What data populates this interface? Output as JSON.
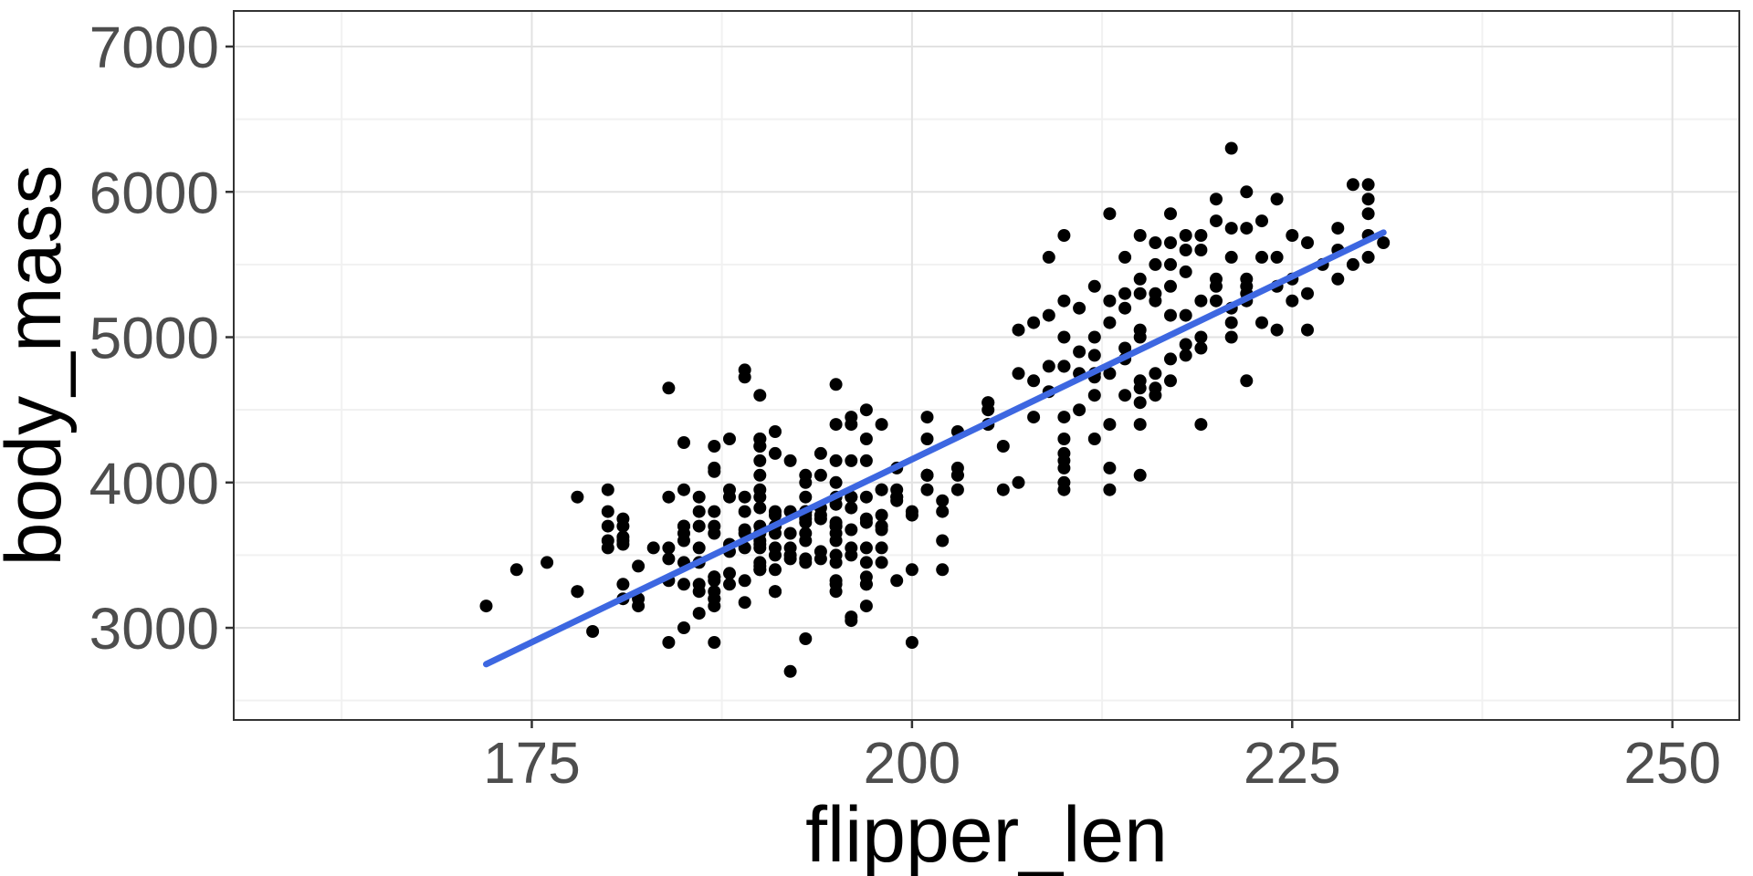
{
  "chart_data": {
    "type": "scatter",
    "title": "",
    "xlabel": "flipper_len",
    "ylabel": "body_mass",
    "xlim": [
      155.4,
      254.4
    ],
    "ylim": [
      2366,
      7245
    ],
    "x_ticks": [
      175,
      200,
      225,
      250
    ],
    "x_tick_labels": [
      "175",
      "200",
      "225",
      "250"
    ],
    "y_ticks": [
      3000,
      4000,
      5000,
      6000,
      7000
    ],
    "y_tick_labels": [
      "3000",
      "4000",
      "5000",
      "6000",
      "7000"
    ],
    "x_minor_ticks": [
      162.5,
      187.5,
      212.5,
      237.5
    ],
    "y_minor_ticks": [
      2500,
      3500,
      4500,
      5500,
      6500
    ],
    "grid": "on",
    "legend": "none",
    "trend_line": {
      "type": "linear",
      "x1": 172,
      "y1": 2750,
      "x2": 231,
      "y2": 5720
    },
    "colors": {
      "point": "#000000",
      "trend_line": "#3d67e1",
      "grid_major": "#e2e2e2",
      "grid_minor": "#f1f1f1",
      "panel_border": "#333333",
      "tick": "#333333",
      "tick_label": "#4d4d4d",
      "axis_title": "#000000",
      "background": "#ffffff",
      "panel_background": "#ffffff"
    },
    "points": [
      [
        181,
        3750
      ],
      [
        186,
        3800
      ],
      [
        195,
        3250
      ],
      [
        193,
        3450
      ],
      [
        190,
        3650
      ],
      [
        181,
        3625
      ],
      [
        195,
        4675
      ],
      [
        193,
        3475
      ],
      [
        190,
        4250
      ],
      [
        186,
        3300
      ],
      [
        180,
        3700
      ],
      [
        182,
        3200
      ],
      [
        191,
        3800
      ],
      [
        198,
        4400
      ],
      [
        185,
        3700
      ],
      [
        195,
        3450
      ],
      [
        197,
        4500
      ],
      [
        184,
        3325
      ],
      [
        194,
        4200
      ],
      [
        174,
        3400
      ],
      [
        180,
        3600
      ],
      [
        189,
        3800
      ],
      [
        185,
        3950
      ],
      [
        180,
        3800
      ],
      [
        187,
        3800
      ],
      [
        183,
        3550
      ],
      [
        187,
        3200
      ],
      [
        172,
        3150
      ],
      [
        180,
        3950
      ],
      [
        178,
        3250
      ],
      [
        178,
        3900
      ],
      [
        188,
        3300
      ],
      [
        184,
        3900
      ],
      [
        195,
        3325
      ],
      [
        196,
        4150
      ],
      [
        190,
        3950
      ],
      [
        180,
        3550
      ],
      [
        181,
        3300
      ],
      [
        184,
        4650
      ],
      [
        182,
        3150
      ],
      [
        195,
        3900
      ],
      [
        186,
        3100
      ],
      [
        196,
        4400
      ],
      [
        185,
        3000
      ],
      [
        190,
        4600
      ],
      [
        182,
        3425
      ],
      [
        179,
        2975
      ],
      [
        190,
        4150
      ],
      [
        191,
        3500
      ],
      [
        186,
        3450
      ],
      [
        188,
        4300
      ],
      [
        190,
        4050
      ],
      [
        200,
        2900
      ],
      [
        187,
        3700
      ],
      [
        191,
        3775
      ],
      [
        186,
        3700
      ],
      [
        193,
        4050
      ],
      [
        181,
        3575
      ],
      [
        194,
        4050
      ],
      [
        185,
        3300
      ],
      [
        195,
        3700
      ],
      [
        185,
        3450
      ],
      [
        192,
        4150
      ],
      [
        184,
        3550
      ],
      [
        192,
        3800
      ],
      [
        195,
        3500
      ],
      [
        188,
        3950
      ],
      [
        190,
        3600
      ],
      [
        198,
        3550
      ],
      [
        190,
        4300
      ],
      [
        190,
        3400
      ],
      [
        196,
        4450
      ],
      [
        197,
        3300
      ],
      [
        190,
        4300
      ],
      [
        195,
        3700
      ],
      [
        191,
        4350
      ],
      [
        184,
        2900
      ],
      [
        187,
        4100
      ],
      [
        195,
        3725
      ],
      [
        189,
        4725
      ],
      [
        196,
        3075
      ],
      [
        187,
        4250
      ],
      [
        193,
        2925
      ],
      [
        191,
        3550
      ],
      [
        194,
        3750
      ],
      [
        190,
        3900
      ],
      [
        189,
        3175
      ],
      [
        189,
        4775
      ],
      [
        190,
        3825
      ],
      [
        202,
        3875
      ],
      [
        203,
        4050
      ],
      [
        205,
        4400
      ],
      [
        210,
        4000
      ],
      [
        185,
        4275
      ],
      [
        186,
        3900
      ],
      [
        187,
        4075
      ],
      [
        193,
        3750
      ],
      [
        191,
        3700
      ],
      [
        194,
        3825
      ],
      [
        185,
        3650
      ],
      [
        184,
        3475
      ],
      [
        201,
        4050
      ],
      [
        190,
        3425
      ],
      [
        197,
        3900
      ],
      [
        191,
        3250
      ],
      [
        196,
        3825
      ],
      [
        188,
        3900
      ],
      [
        199,
        3900
      ],
      [
        189,
        3550
      ],
      [
        189,
        3675
      ],
      [
        187,
        3325
      ],
      [
        198,
        3700
      ],
      [
        176,
        3450
      ],
      [
        202,
        3600
      ],
      [
        186,
        3550
      ],
      [
        199,
        3875
      ],
      [
        191,
        3700
      ],
      [
        195,
        4000
      ],
      [
        191,
        3650
      ],
      [
        190,
        4250
      ],
      [
        200,
        3775
      ],
      [
        197,
        3350
      ],
      [
        193,
        3725
      ],
      [
        192,
        3650
      ],
      [
        193,
        4000
      ],
      [
        194,
        3475
      ],
      [
        198,
        3450
      ],
      [
        197,
        4300
      ],
      [
        185,
        3600
      ],
      [
        193,
        3800
      ],
      [
        199,
        3950
      ],
      [
        190,
        3550
      ],
      [
        181,
        3200
      ],
      [
        197,
        3150
      ],
      [
        198,
        3950
      ],
      [
        191,
        3250
      ],
      [
        193,
        3900
      ],
      [
        197,
        3550
      ],
      [
        191,
        4200
      ],
      [
        196,
        3900
      ],
      [
        188,
        3375
      ],
      [
        199,
        4100
      ],
      [
        189,
        3900
      ],
      [
        189,
        3325
      ],
      [
        187,
        3150
      ],
      [
        196,
        3050
      ],
      [
        190,
        3700
      ],
      [
        188,
        3575
      ],
      [
        192,
        3475
      ],
      [
        186,
        3250
      ],
      [
        192,
        3550
      ],
      [
        192,
        3500
      ],
      [
        196,
        3900
      ],
      [
        193,
        3650
      ],
      [
        188,
        3525
      ],
      [
        197,
        3725
      ],
      [
        198,
        3950
      ],
      [
        178,
        3250
      ],
      [
        197,
        3750
      ],
      [
        195,
        4150
      ],
      [
        198,
        3700
      ],
      [
        193,
        3800
      ],
      [
        194,
        3775
      ],
      [
        185,
        3700
      ],
      [
        201,
        4050
      ],
      [
        190,
        3575
      ],
      [
        201,
        4050
      ],
      [
        197,
        3300
      ],
      [
        181,
        3700
      ],
      [
        190,
        3450
      ],
      [
        195,
        4400
      ],
      [
        181,
        3600
      ],
      [
        191,
        3400
      ],
      [
        187,
        2900
      ],
      [
        193,
        3800
      ],
      [
        195,
        3300
      ],
      [
        197,
        4150
      ],
      [
        200,
        3400
      ],
      [
        200,
        3800
      ],
      [
        191,
        3700
      ],
      [
        205,
        4550
      ],
      [
        187,
        3200
      ],
      [
        201,
        4300
      ],
      [
        187,
        3350
      ],
      [
        203,
        4100
      ],
      [
        195,
        3600
      ],
      [
        199,
        3900
      ],
      [
        195,
        3850
      ],
      [
        210,
        4800
      ],
      [
        192,
        2700
      ],
      [
        205,
        4500
      ],
      [
        210,
        3950
      ],
      [
        187,
        3650
      ],
      [
        196,
        3550
      ],
      [
        196,
        3500
      ],
      [
        196,
        3675
      ],
      [
        201,
        4450
      ],
      [
        190,
        3400
      ],
      [
        212,
        4300
      ],
      [
        187,
        3250
      ],
      [
        198,
        3675
      ],
      [
        199,
        3325
      ],
      [
        201,
        3950
      ],
      [
        193,
        3600
      ],
      [
        203,
        4050
      ],
      [
        187,
        3350
      ],
      [
        197,
        3450
      ],
      [
        191,
        3250
      ],
      [
        203,
        3950
      ],
      [
        202,
        3800
      ],
      [
        194,
        3525
      ],
      [
        206,
        3950
      ],
      [
        189,
        3650
      ],
      [
        195,
        3650
      ],
      [
        207,
        4000
      ],
      [
        202,
        3400
      ],
      [
        193,
        3775
      ],
      [
        210,
        4100
      ],
      [
        198,
        3775
      ],
      [
        211,
        4500
      ],
      [
        230,
        5700
      ],
      [
        210,
        4450
      ],
      [
        218,
        5700
      ],
      [
        215,
        4550
      ],
      [
        210,
        4800
      ],
      [
        211,
        5200
      ],
      [
        219,
        4400
      ],
      [
        209,
        5150
      ],
      [
        215,
        4650
      ],
      [
        214,
        5550
      ],
      [
        216,
        4650
      ],
      [
        213,
        5850
      ],
      [
        210,
        4200
      ],
      [
        217,
        5850
      ],
      [
        210,
        4150
      ],
      [
        221,
        6300
      ],
      [
        209,
        4800
      ],
      [
        222,
        5350
      ],
      [
        218,
        5600
      ],
      [
        215,
        5000
      ],
      [
        213,
        4400
      ],
      [
        215,
        5050
      ],
      [
        215,
        5300
      ],
      [
        215,
        4400
      ],
      [
        216,
        5650
      ],
      [
        215,
        4700
      ],
      [
        210,
        5700
      ],
      [
        220,
        5800
      ],
      [
        222,
        4700
      ],
      [
        209,
        5550
      ],
      [
        207,
        4750
      ],
      [
        230,
        5550
      ],
      [
        220,
        5950
      ],
      [
        222,
        5250
      ],
      [
        213,
        5250
      ],
      [
        229,
        6050
      ],
      [
        217,
        5150
      ],
      [
        214,
        4925
      ],
      [
        221,
        5550
      ],
      [
        216,
        4750
      ],
      [
        223,
        5550
      ],
      [
        221,
        5000
      ],
      [
        221,
        5100
      ],
      [
        217,
        5650
      ],
      [
        216,
        4600
      ],
      [
        230,
        5950
      ],
      [
        209,
        4625
      ],
      [
        220,
        5350
      ],
      [
        215,
        5700
      ],
      [
        223,
        5800
      ],
      [
        212,
        4725
      ],
      [
        221,
        5200
      ],
      [
        212,
        4750
      ],
      [
        224,
        5550
      ],
      [
        212,
        4600
      ],
      [
        228,
        5400
      ],
      [
        218,
        5150
      ],
      [
        218,
        4875
      ],
      [
        212,
        4875
      ],
      [
        230,
        5850
      ],
      [
        218,
        4950
      ],
      [
        222,
        5750
      ],
      [
        213,
        4750
      ],
      [
        224,
        5950
      ],
      [
        217,
        4850
      ],
      [
        210,
        4300
      ],
      [
        219,
        5000
      ],
      [
        213,
        3950
      ],
      [
        215,
        4050
      ],
      [
        206,
        4250
      ],
      [
        213,
        4100
      ],
      [
        214,
        4850
      ],
      [
        216,
        5300
      ],
      [
        217,
        5350
      ],
      [
        219,
        5250
      ],
      [
        220,
        5400
      ],
      [
        222,
        5400
      ],
      [
        225,
        5400
      ],
      [
        226,
        5650
      ],
      [
        228,
        5600
      ],
      [
        224,
        5350
      ],
      [
        226,
        5300
      ],
      [
        227,
        5500
      ],
      [
        225,
        5250
      ],
      [
        224,
        5050
      ],
      [
        219,
        5600
      ],
      [
        217,
        5500
      ],
      [
        216,
        5500
      ],
      [
        215,
        5400
      ],
      [
        214,
        5200
      ],
      [
        213,
        5100
      ],
      [
        212,
        5000
      ],
      [
        211,
        4900
      ],
      [
        210,
        5000
      ],
      [
        208,
        4700
      ],
      [
        207,
        5050
      ],
      [
        205,
        4400
      ],
      [
        203,
        4350
      ],
      [
        205,
        4550
      ],
      [
        208,
        4450
      ],
      [
        211,
        4750
      ],
      [
        214,
        4600
      ],
      [
        217,
        4700
      ],
      [
        219,
        4925
      ],
      [
        222,
        5300
      ],
      [
        225,
        5700
      ],
      [
        228,
        5750
      ],
      [
        230,
        6050
      ],
      [
        231,
        5650
      ],
      [
        229,
        5500
      ],
      [
        226,
        5050
      ],
      [
        223,
        5100
      ],
      [
        220,
        5250
      ],
      [
        218,
        5450
      ],
      [
        216,
        5250
      ],
      [
        214,
        5300
      ],
      [
        212,
        5350
      ],
      [
        210,
        5250
      ],
      [
        208,
        5100
      ],
      [
        219,
        5700
      ],
      [
        221,
        5750
      ],
      [
        222,
        6000
      ]
    ]
  }
}
